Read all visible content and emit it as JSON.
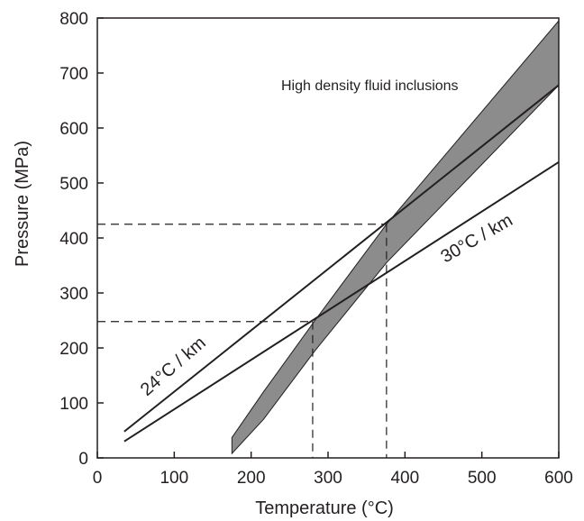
{
  "chart_data": {
    "type": "line",
    "title": "",
    "xlabel": "Temperature (°C)",
    "ylabel": "Pressure (MPa)",
    "xlim": [
      0,
      600
    ],
    "ylim": [
      0,
      800
    ],
    "xticks": [
      0,
      100,
      200,
      300,
      400,
      500,
      600
    ],
    "yticks": [
      0,
      100,
      200,
      300,
      400,
      500,
      600,
      700,
      800
    ],
    "grid": false,
    "series": [
      {
        "name": "24°C / km",
        "x": [
          35,
          600
        ],
        "y": [
          48,
          678
        ]
      },
      {
        "name": "30°C / km",
        "x": [
          35,
          600
        ],
        "y": [
          30,
          538
        ]
      }
    ],
    "band": {
      "name": "High density fluid inclusions",
      "upper": {
        "x": [
          175,
          216,
          283,
          376,
          600
        ],
        "y": [
          37,
          120,
          250,
          425,
          795
        ]
      },
      "lower": {
        "x": [
          600,
          376,
          283,
          216,
          175
        ],
        "y": [
          678,
          355,
          195,
          70,
          8
        ]
      },
      "color": "#8c8c8c"
    },
    "reference_lines": [
      {
        "temperature": 280,
        "pressure": 248
      },
      {
        "temperature": 376,
        "pressure": 425
      }
    ],
    "colors": {
      "line": "#231f20",
      "band": "#8c8c8c"
    }
  }
}
